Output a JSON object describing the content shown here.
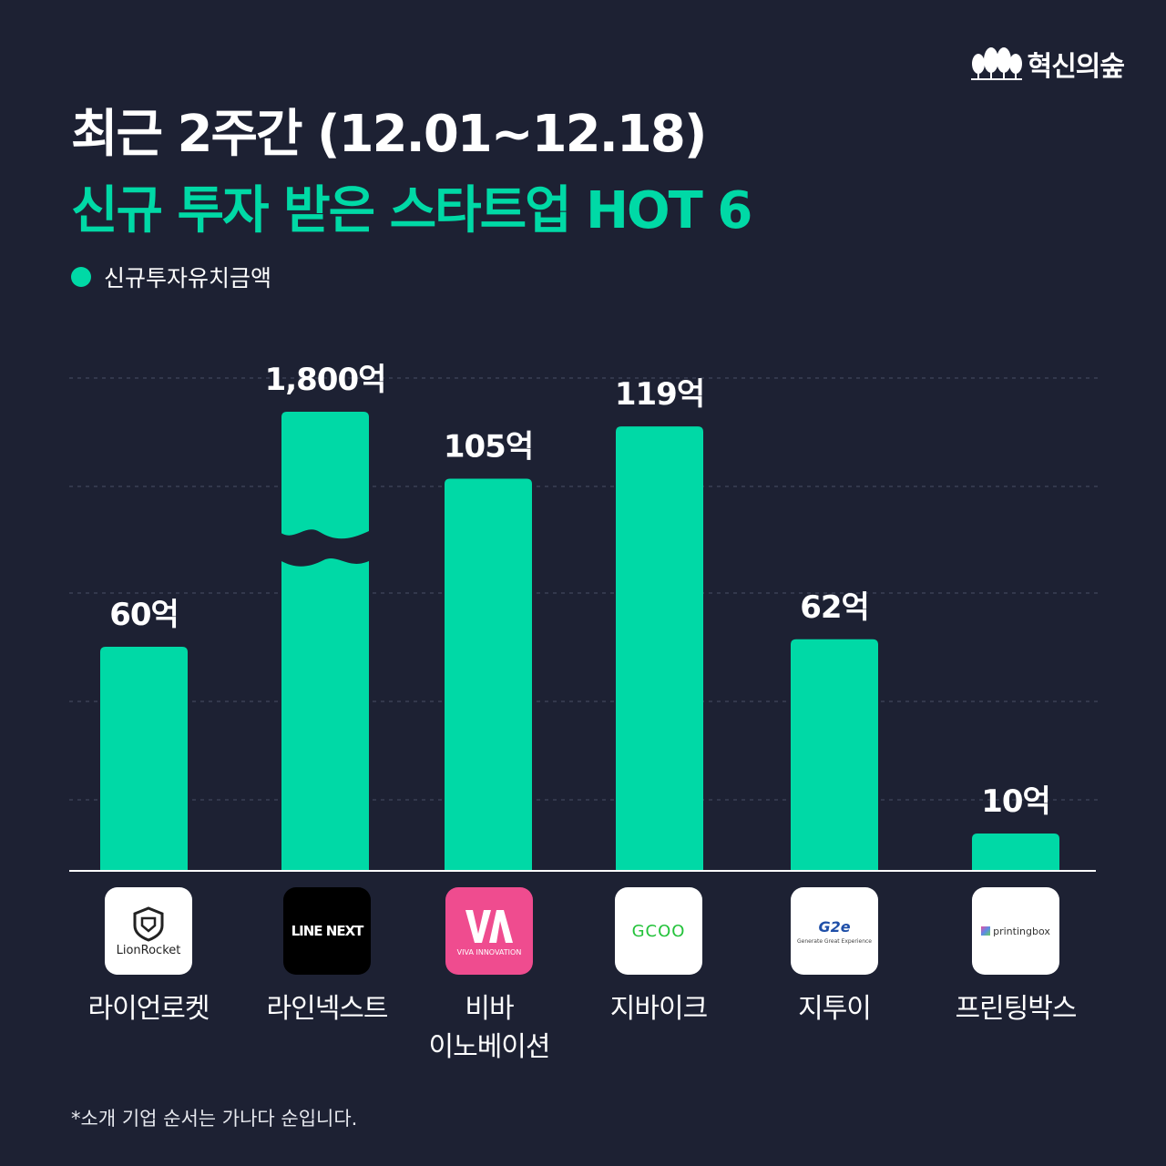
{
  "brand": {
    "name": "혁신의숲"
  },
  "title": {
    "line1": "최근 2주간 (12.01~12.18)",
    "line2": "신규 투자 받은 스타트업 HOT 6"
  },
  "legend": {
    "label": "신규투자유치금액"
  },
  "colors": {
    "background": "#1d2133",
    "accent": "#00d9a6",
    "text": "#ffffff"
  },
  "chart_data": {
    "type": "bar",
    "categories": [
      "라이언로켓",
      "라인넥스트",
      "비바 이노베이션",
      "지바이크",
      "지투이",
      "프린팅박스"
    ],
    "values": [
      60,
      1800,
      105,
      119,
      62,
      10
    ],
    "data_labels": [
      "60억",
      "1,800억",
      "105억",
      "119억",
      "62억",
      "10억"
    ],
    "unit": "억",
    "axis_break": {
      "category": "라인넥스트"
    },
    "grid": true,
    "legend": "top-left"
  },
  "companies": [
    {
      "name": "라이언로켓",
      "logo_text": "LionRocket"
    },
    {
      "name": "라인넥스트",
      "logo_text": "LINE NEXT"
    },
    {
      "name_line1": "비바",
      "name_line2": "이노베이션",
      "logo_text": "VIVA INNOVATION"
    },
    {
      "name": "지바이크",
      "logo_text": "GCOO"
    },
    {
      "name": "지투이",
      "logo_text": "G2e",
      "logo_subtext": "Generate Great Experience"
    },
    {
      "name": "프린팅박스",
      "logo_text": "printingbox"
    }
  ],
  "footnote": "*소개 기업 순서는 가나다 순입니다."
}
